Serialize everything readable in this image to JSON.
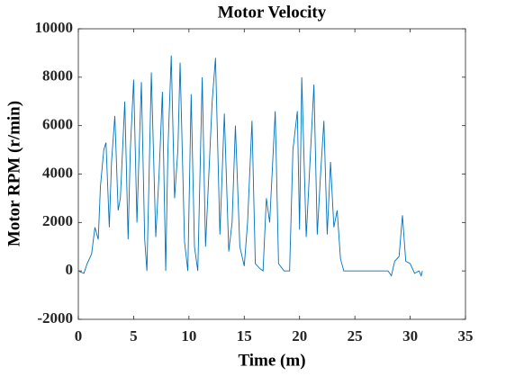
{
  "chart_data": {
    "type": "line",
    "title": "Motor Velocity",
    "x_label": "Time (m)",
    "y_label": "Motor RPM (r/min)",
    "x": [
      0,
      0.5,
      0.8,
      1.2,
      1.5,
      1.8,
      2.0,
      2.3,
      2.5,
      2.8,
      3.0,
      3.3,
      3.6,
      3.8,
      4.2,
      4.5,
      4.7,
      5.0,
      5.3,
      5.5,
      5.7,
      6.0,
      6.2,
      6.4,
      6.6,
      7.0,
      7.3,
      7.6,
      7.9,
      8.1,
      8.4,
      8.7,
      9.0,
      9.2,
      9.6,
      9.9,
      10.2,
      10.5,
      10.8,
      11.2,
      11.5,
      11.8,
      12.1,
      12.4,
      12.8,
      13.2,
      13.6,
      13.9,
      14.2,
      14.6,
      15.0,
      15.3,
      15.7,
      16.0,
      16.4,
      16.7,
      17.0,
      17.3,
      17.8,
      18.1,
      18.6,
      19.1,
      19.4,
      19.8,
      20.0,
      20.2,
      20.6,
      21.0,
      21.3,
      21.6,
      21.9,
      22.2,
      22.5,
      22.8,
      23.1,
      23.4,
      23.7,
      24.0,
      26,
      28,
      28.3,
      28.6,
      29.0,
      29.3,
      29.6,
      30.0,
      30.4,
      30.8,
      31.0,
      31.1
    ],
    "series": [
      {
        "name": "Motor RPM",
        "color": "#0072bd",
        "values": [
          0,
          -100,
          300,
          700,
          1800,
          1300,
          3500,
          5000,
          5300,
          1800,
          4500,
          6400,
          2500,
          3000,
          7000,
          1300,
          5000,
          7900,
          2000,
          5000,
          7800,
          1300,
          0,
          4000,
          8200,
          1400,
          4000,
          7400,
          0,
          5000,
          8900,
          3000,
          5000,
          8600,
          1200,
          0,
          7300,
          1000,
          0,
          8000,
          1000,
          4000,
          7000,
          8800,
          1500,
          6500,
          800,
          2000,
          6000,
          1000,
          200,
          2000,
          6200,
          300,
          100,
          0,
          3000,
          2000,
          6600,
          300,
          0,
          0,
          5000,
          6600,
          1700,
          8000,
          1400,
          5000,
          7700,
          1500,
          4000,
          6200,
          1500,
          4500,
          1800,
          2500,
          500,
          0,
          0,
          0,
          -200,
          400,
          600,
          2300,
          400,
          300,
          -100,
          0,
          -200,
          0
        ]
      }
    ],
    "xlim": [
      0,
      35
    ],
    "xticks": [
      0,
      5,
      10,
      15,
      20,
      25,
      30,
      35
    ],
    "ylim": [
      -2000,
      10000
    ],
    "yticks": [
      -2000,
      0,
      2000,
      4000,
      6000,
      8000,
      10000
    ]
  }
}
